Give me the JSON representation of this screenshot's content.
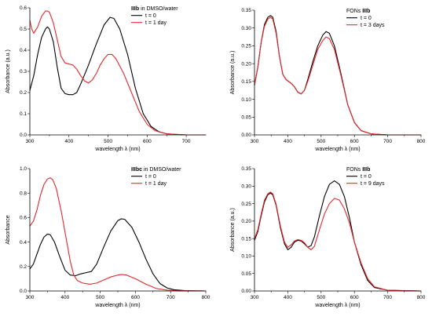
{
  "colors": {
    "black": "#000000",
    "red": "#e8262b"
  },
  "chart_data": [
    {
      "type": "line",
      "legend_title_bold": "IIIb",
      "legend_title_rest": " in DMSO/water",
      "xlabel": "wavelength λ (nm)",
      "ylabel": "Absorbance (a.u.)",
      "xlim": [
        300,
        750
      ],
      "ylim": [
        0.0,
        0.6
      ],
      "xticks": [
        300,
        400,
        500,
        600,
        700
      ],
      "yticks": [
        0.0,
        0.1,
        0.2,
        0.3,
        0.4,
        0.5,
        0.6
      ],
      "yprecision": 1,
      "legend_position": "top-right",
      "series": [
        {
          "name": "t = 0",
          "color": "#000000",
          "points": [
            [
              300,
              0.21
            ],
            [
              310,
              0.28
            ],
            [
              320,
              0.38
            ],
            [
              330,
              0.46
            ],
            [
              340,
              0.5
            ],
            [
              345,
              0.51
            ],
            [
              350,
              0.5
            ],
            [
              360,
              0.44
            ],
            [
              370,
              0.32
            ],
            [
              380,
              0.22
            ],
            [
              390,
              0.195
            ],
            [
              400,
              0.19
            ],
            [
              410,
              0.19
            ],
            [
              420,
              0.2
            ],
            [
              430,
              0.24
            ],
            [
              450,
              0.33
            ],
            [
              470,
              0.43
            ],
            [
              490,
              0.52
            ],
            [
              505,
              0.555
            ],
            [
              515,
              0.55
            ],
            [
              530,
              0.5
            ],
            [
              550,
              0.38
            ],
            [
              570,
              0.22
            ],
            [
              590,
              0.1
            ],
            [
              610,
              0.04
            ],
            [
              630,
              0.015
            ],
            [
              650,
              0.005
            ],
            [
              700,
              0.0
            ],
            [
              750,
              0.0
            ]
          ]
        },
        {
          "name": "t = 1 day",
          "color": "#e8262b",
          "points": [
            [
              300,
              0.54
            ],
            [
              305,
              0.5
            ],
            [
              310,
              0.48
            ],
            [
              320,
              0.51
            ],
            [
              330,
              0.56
            ],
            [
              340,
              0.585
            ],
            [
              345,
              0.585
            ],
            [
              350,
              0.58
            ],
            [
              360,
              0.53
            ],
            [
              370,
              0.45
            ],
            [
              380,
              0.37
            ],
            [
              390,
              0.34
            ],
            [
              400,
              0.335
            ],
            [
              410,
              0.33
            ],
            [
              420,
              0.31
            ],
            [
              430,
              0.28
            ],
            [
              440,
              0.255
            ],
            [
              450,
              0.245
            ],
            [
              460,
              0.26
            ],
            [
              470,
              0.29
            ],
            [
              480,
              0.33
            ],
            [
              490,
              0.36
            ],
            [
              500,
              0.38
            ],
            [
              510,
              0.38
            ],
            [
              520,
              0.36
            ],
            [
              540,
              0.29
            ],
            [
              560,
              0.2
            ],
            [
              580,
              0.11
            ],
            [
              600,
              0.05
            ],
            [
              620,
              0.02
            ],
            [
              650,
              0.005
            ],
            [
              700,
              0.0
            ],
            [
              750,
              0.0
            ]
          ]
        }
      ]
    },
    {
      "type": "line",
      "legend_title_bold": "IIIb",
      "legend_title_prefix": "FONs ",
      "legend_title_rest": "",
      "xlabel": "wavelength λ (nm)",
      "ylabel": "Absorbance (a.u.)",
      "xlim": [
        300,
        800
      ],
      "ylim": [
        0.0,
        0.35
      ],
      "xticks": [
        300,
        400,
        500,
        600,
        700,
        800
      ],
      "yticks": [
        0.0,
        0.05,
        0.1,
        0.15,
        0.2,
        0.25,
        0.3,
        0.35
      ],
      "yprecision": 2,
      "legend_position": "top-right",
      "series": [
        {
          "name": "t = 0",
          "color": "#000000",
          "points": [
            [
              300,
              0.14
            ],
            [
              310,
              0.19
            ],
            [
              320,
              0.26
            ],
            [
              330,
              0.31
            ],
            [
              340,
              0.33
            ],
            [
              348,
              0.335
            ],
            [
              355,
              0.33
            ],
            [
              365,
              0.29
            ],
            [
              375,
              0.22
            ],
            [
              385,
              0.17
            ],
            [
              395,
              0.155
            ],
            [
              410,
              0.145
            ],
            [
              420,
              0.135
            ],
            [
              430,
              0.12
            ],
            [
              440,
              0.115
            ],
            [
              450,
              0.125
            ],
            [
              460,
              0.155
            ],
            [
              475,
              0.205
            ],
            [
              490,
              0.25
            ],
            [
              505,
              0.28
            ],
            [
              515,
              0.29
            ],
            [
              525,
              0.285
            ],
            [
              540,
              0.25
            ],
            [
              560,
              0.17
            ],
            [
              580,
              0.085
            ],
            [
              600,
              0.035
            ],
            [
              620,
              0.012
            ],
            [
              650,
              0.003
            ],
            [
              700,
              0.0
            ],
            [
              800,
              0.0
            ]
          ]
        },
        {
          "name": "t = 3 days",
          "color": "#e8262b",
          "points": [
            [
              300,
              0.14
            ],
            [
              310,
              0.19
            ],
            [
              320,
              0.26
            ],
            [
              330,
              0.305
            ],
            [
              340,
              0.325
            ],
            [
              348,
              0.33
            ],
            [
              355,
              0.325
            ],
            [
              365,
              0.285
            ],
            [
              375,
              0.22
            ],
            [
              385,
              0.17
            ],
            [
              395,
              0.155
            ],
            [
              410,
              0.145
            ],
            [
              420,
              0.135
            ],
            [
              430,
              0.12
            ],
            [
              440,
              0.115
            ],
            [
              450,
              0.125
            ],
            [
              460,
              0.15
            ],
            [
              475,
              0.195
            ],
            [
              490,
              0.24
            ],
            [
              505,
              0.265
            ],
            [
              515,
              0.275
            ],
            [
              525,
              0.27
            ],
            [
              540,
              0.24
            ],
            [
              560,
              0.165
            ],
            [
              580,
              0.085
            ],
            [
              600,
              0.035
            ],
            [
              620,
              0.012
            ],
            [
              650,
              0.003
            ],
            [
              700,
              0.0
            ],
            [
              800,
              0.0
            ]
          ]
        }
      ]
    },
    {
      "type": "line",
      "legend_title_bold": "IIIbc",
      "legend_title_rest": " in DMSO/water",
      "xlabel": "wavelength λ (nm)",
      "ylabel": "Absorbance",
      "xlim": [
        300,
        800
      ],
      "ylim": [
        0.0,
        1.0
      ],
      "xticks": [
        300,
        400,
        500,
        600,
        700,
        800
      ],
      "yticks": [
        0.0,
        0.2,
        0.4,
        0.6,
        0.8,
        1.0
      ],
      "yprecision": 1,
      "legend_position": "top-right",
      "series": [
        {
          "name": "t = 0",
          "color": "#000000",
          "points": [
            [
              300,
              0.18
            ],
            [
              310,
              0.22
            ],
            [
              320,
              0.3
            ],
            [
              330,
              0.38
            ],
            [
              340,
              0.44
            ],
            [
              350,
              0.465
            ],
            [
              358,
              0.46
            ],
            [
              370,
              0.4
            ],
            [
              385,
              0.28
            ],
            [
              400,
              0.17
            ],
            [
              415,
              0.13
            ],
            [
              430,
              0.125
            ],
            [
              445,
              0.14
            ],
            [
              460,
              0.15
            ],
            [
              475,
              0.16
            ],
            [
              490,
              0.22
            ],
            [
              510,
              0.36
            ],
            [
              530,
              0.49
            ],
            [
              550,
              0.575
            ],
            [
              560,
              0.59
            ],
            [
              570,
              0.585
            ],
            [
              590,
              0.52
            ],
            [
              610,
              0.4
            ],
            [
              630,
              0.26
            ],
            [
              650,
              0.14
            ],
            [
              670,
              0.06
            ],
            [
              690,
              0.025
            ],
            [
              710,
              0.01
            ],
            [
              740,
              0.003
            ],
            [
              800,
              0.0
            ]
          ]
        },
        {
          "name": "t = 1 day",
          "color": "#e8262b",
          "points": [
            [
              300,
              0.53
            ],
            [
              310,
              0.57
            ],
            [
              320,
              0.66
            ],
            [
              330,
              0.78
            ],
            [
              340,
              0.87
            ],
            [
              350,
              0.915
            ],
            [
              358,
              0.925
            ],
            [
              365,
              0.91
            ],
            [
              375,
              0.84
            ],
            [
              390,
              0.64
            ],
            [
              405,
              0.4
            ],
            [
              415,
              0.24
            ],
            [
              425,
              0.13
            ],
            [
              435,
              0.085
            ],
            [
              450,
              0.065
            ],
            [
              470,
              0.055
            ],
            [
              490,
              0.065
            ],
            [
              510,
              0.09
            ],
            [
              530,
              0.115
            ],
            [
              550,
              0.13
            ],
            [
              560,
              0.135
            ],
            [
              575,
              0.13
            ],
            [
              600,
              0.1
            ],
            [
              630,
              0.055
            ],
            [
              660,
              0.02
            ],
            [
              690,
              0.007
            ],
            [
              720,
              0.002
            ],
            [
              800,
              0.0
            ]
          ]
        }
      ]
    },
    {
      "type": "line",
      "legend_title_bold": "IIIb",
      "legend_title_prefix": "FONs ",
      "legend_title_rest": "",
      "xlabel": "wavelength λ (nm)",
      "ylabel": "Absorbance (a.u.)",
      "xlim": [
        300,
        800
      ],
      "ylim": [
        0.0,
        0.35
      ],
      "xticks": [
        300,
        400,
        500,
        600,
        700,
        800
      ],
      "yticks": [
        0.0,
        0.05,
        0.1,
        0.15,
        0.2,
        0.25,
        0.3,
        0.35
      ],
      "yprecision": 2,
      "legend_position": "top-right",
      "series": [
        {
          "name": "t = 0",
          "color": "#000000",
          "points": [
            [
              300,
              0.145
            ],
            [
              310,
              0.17
            ],
            [
              320,
              0.215
            ],
            [
              330,
              0.255
            ],
            [
              340,
              0.275
            ],
            [
              348,
              0.28
            ],
            [
              355,
              0.275
            ],
            [
              365,
              0.245
            ],
            [
              378,
              0.18
            ],
            [
              390,
              0.135
            ],
            [
              400,
              0.118
            ],
            [
              410,
              0.125
            ],
            [
              420,
              0.14
            ],
            [
              430,
              0.145
            ],
            [
              440,
              0.143
            ],
            [
              450,
              0.135
            ],
            [
              460,
              0.125
            ],
            [
              470,
              0.13
            ],
            [
              480,
              0.155
            ],
            [
              495,
              0.215
            ],
            [
              510,
              0.27
            ],
            [
              525,
              0.305
            ],
            [
              540,
              0.315
            ],
            [
              555,
              0.305
            ],
            [
              570,
              0.27
            ],
            [
              585,
              0.21
            ],
            [
              600,
              0.14
            ],
            [
              620,
              0.075
            ],
            [
              640,
              0.03
            ],
            [
              660,
              0.01
            ],
            [
              700,
              0.002
            ],
            [
              800,
              0.0
            ]
          ]
        },
        {
          "name": "t = 9 days",
          "color": "#e8262b",
          "points": [
            [
              300,
              0.15
            ],
            [
              310,
              0.175
            ],
            [
              320,
              0.22
            ],
            [
              330,
              0.26
            ],
            [
              340,
              0.278
            ],
            [
              348,
              0.283
            ],
            [
              355,
              0.278
            ],
            [
              365,
              0.248
            ],
            [
              378,
              0.185
            ],
            [
              390,
              0.14
            ],
            [
              400,
              0.125
            ],
            [
              410,
              0.132
            ],
            [
              420,
              0.143
            ],
            [
              430,
              0.147
            ],
            [
              440,
              0.145
            ],
            [
              450,
              0.138
            ],
            [
              460,
              0.125
            ],
            [
              470,
              0.118
            ],
            [
              480,
              0.128
            ],
            [
              495,
              0.175
            ],
            [
              510,
              0.22
            ],
            [
              525,
              0.25
            ],
            [
              540,
              0.265
            ],
            [
              555,
              0.26
            ],
            [
              570,
              0.235
            ],
            [
              585,
              0.195
            ],
            [
              600,
              0.14
            ],
            [
              620,
              0.08
            ],
            [
              640,
              0.035
            ],
            [
              660,
              0.012
            ],
            [
              700,
              0.002
            ],
            [
              800,
              0.0
            ]
          ]
        }
      ]
    }
  ]
}
